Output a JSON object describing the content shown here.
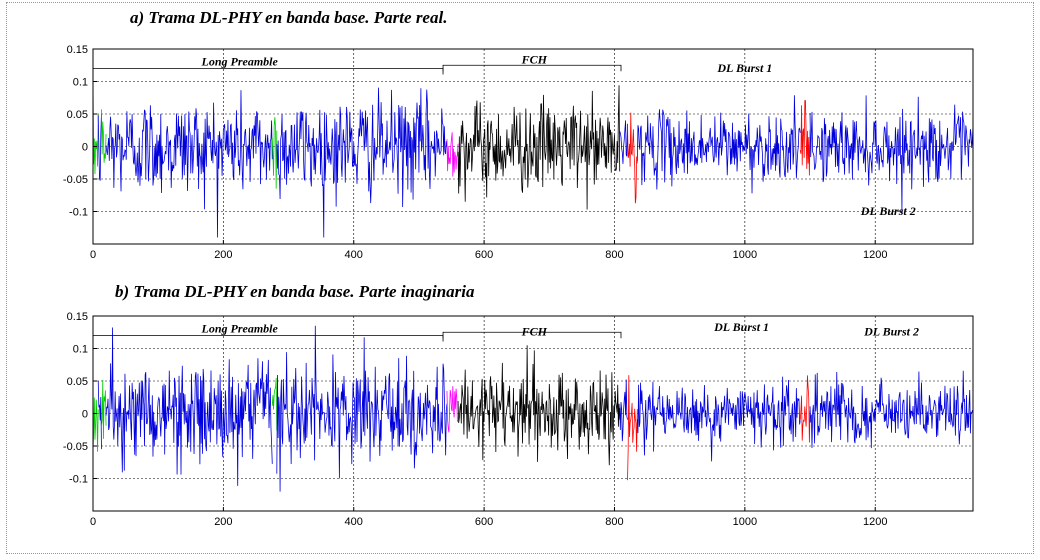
{
  "chart_data": [
    {
      "type": "line",
      "title": "a) Trama DL-PHY en banda base. Parte real.",
      "xlim": [
        0,
        1350
      ],
      "ylim": [
        -0.15,
        0.15
      ],
      "xticks": [
        0,
        200,
        400,
        600,
        800,
        1000,
        1200
      ],
      "yticks": [
        0.15,
        0.1,
        0.05,
        0,
        -0.05,
        -0.1
      ],
      "ytick_labels": [
        "0.15",
        "0.1",
        "0.05",
        "0",
        "-0.05",
        "-0.1"
      ],
      "grid": true,
      "segments": [
        {
          "from": 0,
          "to": 8,
          "color": "#00cc00",
          "amp": 0.05
        },
        {
          "from": 8,
          "to": 13,
          "color": "#0000dd",
          "amp": 0.05
        },
        {
          "from": 13,
          "to": 20,
          "color": "#00cc00",
          "amp": 0.05
        },
        {
          "from": 20,
          "to": 275,
          "color": "#0000dd",
          "amp": 0.05
        },
        {
          "from": 275,
          "to": 282,
          "color": "#00cc00",
          "amp": 0.05
        },
        {
          "from": 282,
          "to": 543,
          "color": "#0000dd",
          "amp": 0.05
        },
        {
          "from": 543,
          "to": 560,
          "color": "#ff00ff",
          "amp": 0.03
        },
        {
          "from": 560,
          "to": 808,
          "color": "#000000",
          "amp": 0.045
        },
        {
          "from": 808,
          "to": 820,
          "color": "#0000dd",
          "amp": 0.03
        },
        {
          "from": 820,
          "to": 835,
          "color": "#ff0000",
          "amp": 0.05
        },
        {
          "from": 835,
          "to": 1085,
          "color": "#0000dd",
          "amp": 0.035
        },
        {
          "from": 1085,
          "to": 1100,
          "color": "#ff0000",
          "amp": 0.045
        },
        {
          "from": 1100,
          "to": 1350,
          "color": "#0000dd",
          "amp": 0.035
        }
      ],
      "annotations": [
        {
          "text": "Long Preamble",
          "x": 225,
          "y": 0.125
        },
        {
          "text": "FCH",
          "x": 677,
          "y": 0.128
        },
        {
          "text": "DL Burst 1",
          "x": 1000,
          "y": 0.115
        },
        {
          "text": "DL Burst 2",
          "x": 1220,
          "y": -0.105
        }
      ],
      "brackets": [
        {
          "from": 0,
          "to": 537,
          "y": 0.12
        },
        {
          "from": 537,
          "to": 810,
          "y": 0.125
        }
      ]
    },
    {
      "type": "line",
      "title": "b) Trama DL-PHY en banda base. Parte inaginaria",
      "xlim": [
        0,
        1350
      ],
      "ylim": [
        -0.15,
        0.15
      ],
      "xticks": [
        0,
        200,
        400,
        600,
        800,
        1000,
        1200
      ],
      "yticks": [
        0.15,
        0.1,
        0.05,
        0,
        -0.05,
        -0.1
      ],
      "ytick_labels": [
        "0.15",
        "0.1",
        "0.05",
        "0",
        "-0.05",
        "-0.1"
      ],
      "grid": true,
      "segments": [
        {
          "from": 0,
          "to": 8,
          "color": "#00cc00",
          "amp": 0.05
        },
        {
          "from": 8,
          "to": 13,
          "color": "#0000dd",
          "amp": 0.05
        },
        {
          "from": 13,
          "to": 20,
          "color": "#00cc00",
          "amp": 0.05
        },
        {
          "from": 20,
          "to": 275,
          "color": "#0000dd",
          "amp": 0.05
        },
        {
          "from": 275,
          "to": 282,
          "color": "#00cc00",
          "amp": 0.05
        },
        {
          "from": 282,
          "to": 543,
          "color": "#0000dd",
          "amp": 0.05
        },
        {
          "from": 543,
          "to": 560,
          "color": "#ff00ff",
          "amp": 0.03
        },
        {
          "from": 560,
          "to": 808,
          "color": "#000000",
          "amp": 0.045
        },
        {
          "from": 808,
          "to": 820,
          "color": "#0000dd",
          "amp": 0.03
        },
        {
          "from": 820,
          "to": 835,
          "color": "#ff0000",
          "amp": 0.05
        },
        {
          "from": 835,
          "to": 1085,
          "color": "#0000dd",
          "amp": 0.035
        },
        {
          "from": 1085,
          "to": 1100,
          "color": "#ff0000",
          "amp": 0.045
        },
        {
          "from": 1100,
          "to": 1350,
          "color": "#0000dd",
          "amp": 0.035
        }
      ],
      "annotations": [
        {
          "text": "Long Preamble",
          "x": 225,
          "y": 0.125
        },
        {
          "text": "FCH",
          "x": 677,
          "y": 0.12
        },
        {
          "text": "DL Burst 1",
          "x": 995,
          "y": 0.127
        },
        {
          "text": "DL Burst 2",
          "x": 1225,
          "y": 0.12
        }
      ],
      "brackets": [
        {
          "from": 0,
          "to": 537,
          "y": 0.12
        },
        {
          "from": 537,
          "to": 810,
          "y": 0.125
        }
      ]
    }
  ]
}
